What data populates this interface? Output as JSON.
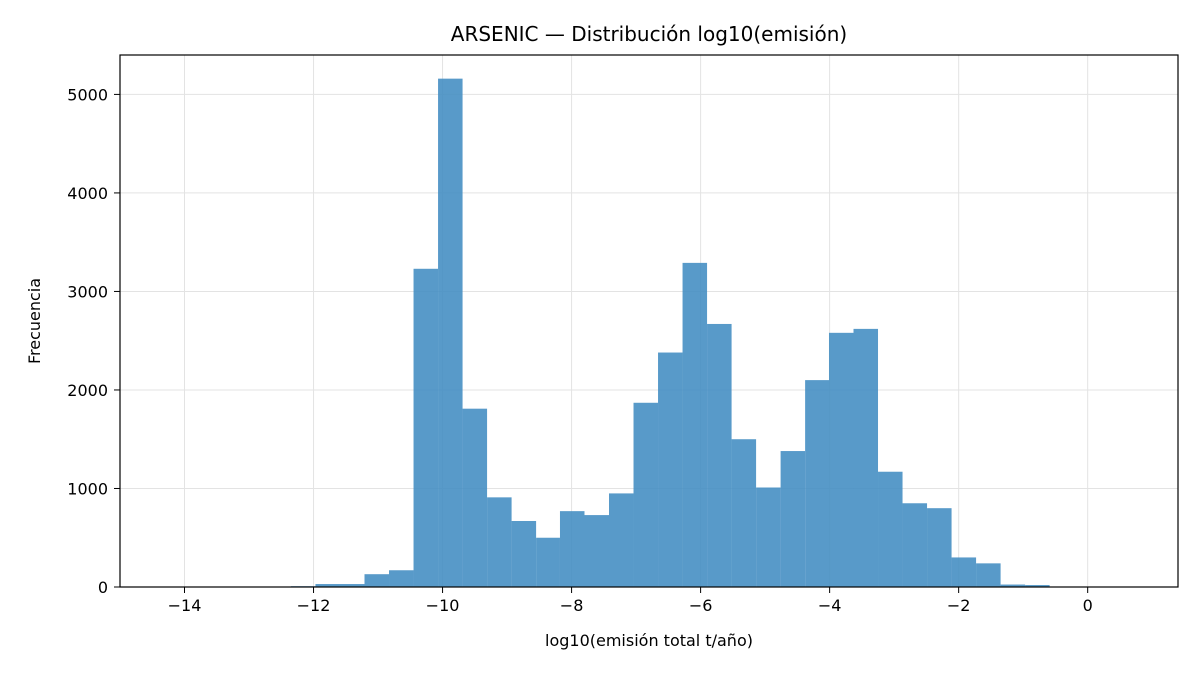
{
  "chart_data": {
    "type": "bar",
    "title": "ARSENIC — Distribución log10(emisión)",
    "xlabel": "log10(emisión total t/año)",
    "ylabel": "Frecuencia",
    "xlim": [
      -15.0,
      1.4
    ],
    "ylim": [
      0,
      5400
    ],
    "xticks": [
      -14,
      -12,
      -10,
      -8,
      -6,
      -4,
      -2,
      0
    ],
    "xtick_labels": [
      "−14",
      "−12",
      "−10",
      "−8",
      "−6",
      "−4",
      "−2",
      "0"
    ],
    "yticks": [
      0,
      1000,
      2000,
      3000,
      4000,
      5000
    ],
    "ytick_labels": [
      "0",
      "1000",
      "2000",
      "3000",
      "4000",
      "5000"
    ],
    "grid": true,
    "bar_color": "#3f8bc1",
    "bins": [
      {
        "x0": -14.62,
        "x1": -14.24,
        "count": 2
      },
      {
        "x0": -14.24,
        "x1": -13.86,
        "count": 0
      },
      {
        "x0": -13.86,
        "x1": -13.48,
        "count": 1
      },
      {
        "x0": -13.48,
        "x1": -13.1,
        "count": 1
      },
      {
        "x0": -13.1,
        "x1": -12.72,
        "count": 2
      },
      {
        "x0": -12.72,
        "x1": -12.35,
        "count": 4
      },
      {
        "x0": -12.35,
        "x1": -11.97,
        "count": 8
      },
      {
        "x0": -11.97,
        "x1": -11.59,
        "count": 30
      },
      {
        "x0": -11.59,
        "x1": -11.21,
        "count": 30
      },
      {
        "x0": -11.21,
        "x1": -10.83,
        "count": 130
      },
      {
        "x0": -10.83,
        "x1": -10.45,
        "count": 170
      },
      {
        "x0": -10.45,
        "x1": -10.07,
        "count": 3230
      },
      {
        "x0": -10.07,
        "x1": -9.69,
        "count": 5160
      },
      {
        "x0": -9.69,
        "x1": -9.31,
        "count": 1810
      },
      {
        "x0": -9.31,
        "x1": -8.93,
        "count": 910
      },
      {
        "x0": -8.93,
        "x1": -8.55,
        "count": 670
      },
      {
        "x0": -8.55,
        "x1": -8.18,
        "count": 500
      },
      {
        "x0": -8.18,
        "x1": -7.8,
        "count": 770
      },
      {
        "x0": -7.8,
        "x1": -7.42,
        "count": 730
      },
      {
        "x0": -7.42,
        "x1": -7.04,
        "count": 950
      },
      {
        "x0": -7.04,
        "x1": -6.66,
        "count": 1870
      },
      {
        "x0": -6.66,
        "x1": -6.28,
        "count": 2380
      },
      {
        "x0": -6.28,
        "x1": -5.9,
        "count": 3290
      },
      {
        "x0": -5.9,
        "x1": -5.52,
        "count": 2670
      },
      {
        "x0": -5.52,
        "x1": -5.14,
        "count": 1500
      },
      {
        "x0": -5.14,
        "x1": -4.76,
        "count": 1010
      },
      {
        "x0": -4.76,
        "x1": -4.38,
        "count": 1380
      },
      {
        "x0": -4.38,
        "x1": -4.01,
        "count": 2100
      },
      {
        "x0": -4.01,
        "x1": -3.63,
        "count": 2580
      },
      {
        "x0": -3.63,
        "x1": -3.25,
        "count": 2620
      },
      {
        "x0": -3.25,
        "x1": -2.87,
        "count": 1170
      },
      {
        "x0": -2.87,
        "x1": -2.49,
        "count": 850
      },
      {
        "x0": -2.49,
        "x1": -2.11,
        "count": 800
      },
      {
        "x0": -2.11,
        "x1": -1.73,
        "count": 300
      },
      {
        "x0": -1.73,
        "x1": -1.35,
        "count": 240
      },
      {
        "x0": -1.35,
        "x1": -0.97,
        "count": 25
      },
      {
        "x0": -0.97,
        "x1": -0.59,
        "count": 20
      },
      {
        "x0": -0.59,
        "x1": -0.21,
        "count": 5
      },
      {
        "x0": -0.21,
        "x1": 0.17,
        "count": 4
      },
      {
        "x0": 0.17,
        "x1": 0.55,
        "count": 3
      },
      {
        "x0": 0.55,
        "x1": 0.93,
        "count": 2
      }
    ]
  }
}
